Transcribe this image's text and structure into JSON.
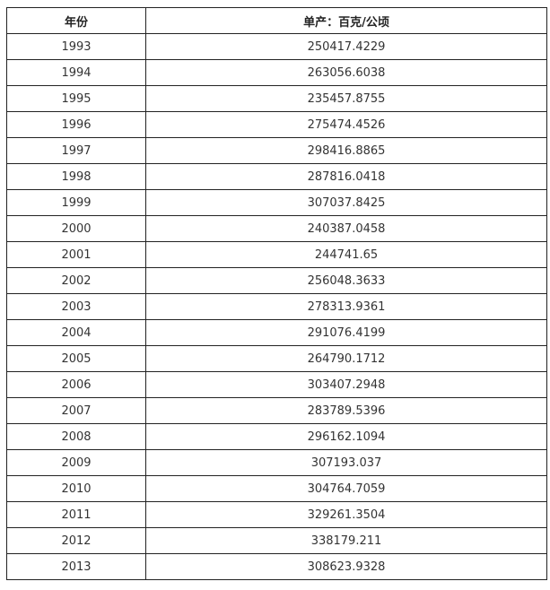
{
  "table": {
    "headers": [
      "年份",
      "单产：百克/公顷"
    ],
    "rows": [
      [
        "1993",
        "250417.4229"
      ],
      [
        "1994",
        "263056.6038"
      ],
      [
        "1995",
        "235457.8755"
      ],
      [
        "1996",
        "275474.4526"
      ],
      [
        "1997",
        "298416.8865"
      ],
      [
        "1998",
        "287816.0418"
      ],
      [
        "1999",
        "307037.8425"
      ],
      [
        "2000",
        "240387.0458"
      ],
      [
        "2001",
        "244741.65"
      ],
      [
        "2002",
        "256048.3633"
      ],
      [
        "2003",
        "278313.9361"
      ],
      [
        "2004",
        "291076.4199"
      ],
      [
        "2005",
        "264790.1712"
      ],
      [
        "2006",
        "303407.2948"
      ],
      [
        "2007",
        "283789.5396"
      ],
      [
        "2008",
        "296162.1094"
      ],
      [
        "2009",
        "307193.037"
      ],
      [
        "2010",
        "304764.7059"
      ],
      [
        "2011",
        "329261.3504"
      ],
      [
        "2012",
        "338179.211"
      ],
      [
        "2013",
        "308623.9328"
      ]
    ]
  }
}
